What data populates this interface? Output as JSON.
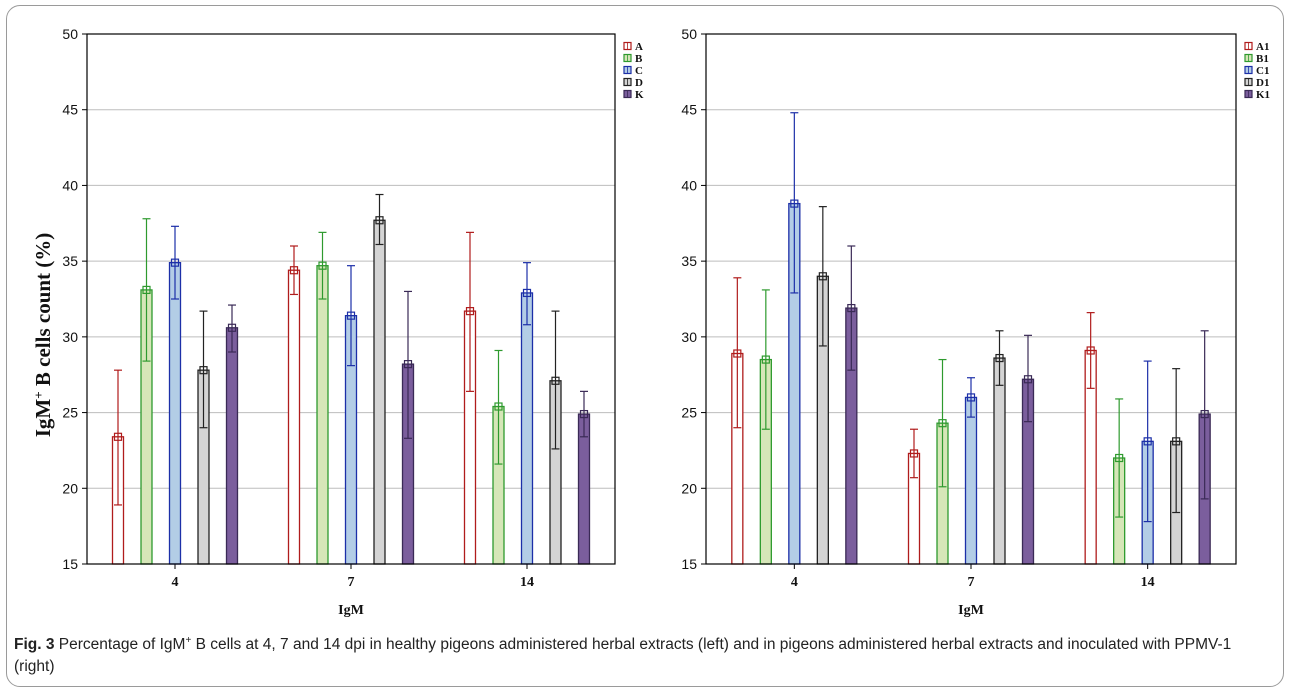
{
  "figure": {
    "ylabel_main": "IgM",
    "ylabel_sup": "+",
    "ylabel_rest": " B cells count (%)",
    "caption": {
      "label": "Fig. 3",
      "text_before": " Percentage of IgM",
      "text_sup": "+",
      "text_after": " B cells at 4, 7 and 14 dpi in healthy pigeons administered herbal extracts (left) and in pigeons administered herbal extracts and inoculated with PPMV-1 (right)"
    }
  },
  "chart_data": [
    {
      "type": "bar",
      "title": "",
      "xlabel": "IgM",
      "ylabel": "IgM+ B cells count (%)",
      "ylim": [
        15,
        50
      ],
      "yticks": [
        15,
        20,
        25,
        30,
        35,
        40,
        45,
        50
      ],
      "categories": [
        "4",
        "7",
        "14"
      ],
      "legend_position": "top-right",
      "grid": true,
      "series": [
        {
          "name": "A",
          "color": "#b01c1c",
          "fill": "#ffffff",
          "values": [
            23.4,
            34.4,
            31.7
          ],
          "err_low": [
            18.9,
            32.8,
            26.4
          ],
          "err_high": [
            27.8,
            36.0,
            36.9
          ]
        },
        {
          "name": "B",
          "color": "#2e9a2e",
          "fill": "#d6e6b8",
          "values": [
            33.1,
            34.7,
            25.4
          ],
          "err_low": [
            28.4,
            32.5,
            21.6
          ],
          "err_high": [
            37.8,
            36.9,
            29.1
          ]
        },
        {
          "name": "C",
          "color": "#1c2fa8",
          "fill": "#b3cde6",
          "values": [
            34.9,
            31.4,
            32.9
          ],
          "err_low": [
            32.5,
            28.1,
            30.8
          ],
          "err_high": [
            37.3,
            34.7,
            34.9
          ]
        },
        {
          "name": "D",
          "color": "#222222",
          "fill": "#d4d4d4",
          "values": [
            27.8,
            37.7,
            27.1
          ],
          "err_low": [
            24.0,
            36.1,
            22.6
          ],
          "err_high": [
            31.7,
            39.4,
            31.7
          ]
        },
        {
          "name": "K",
          "color": "#3a2a56",
          "fill": "#7b5e9d",
          "values": [
            30.6,
            28.2,
            24.9
          ],
          "err_low": [
            29.0,
            23.3,
            23.4
          ],
          "err_high": [
            32.1,
            33.0,
            26.4
          ]
        }
      ]
    },
    {
      "type": "bar",
      "title": "",
      "xlabel": "IgM",
      "ylabel": "",
      "ylim": [
        15,
        50
      ],
      "yticks": [
        15,
        20,
        25,
        30,
        35,
        40,
        45,
        50
      ],
      "categories": [
        "4",
        "7",
        "14"
      ],
      "legend_position": "top-right",
      "grid": true,
      "series": [
        {
          "name": "A1",
          "color": "#b01c1c",
          "fill": "#ffffff",
          "values": [
            28.9,
            22.3,
            29.1
          ],
          "err_low": [
            24.0,
            20.7,
            26.6
          ],
          "err_high": [
            33.9,
            23.9,
            31.6
          ]
        },
        {
          "name": "B1",
          "color": "#2e9a2e",
          "fill": "#d6e6b8",
          "values": [
            28.5,
            24.3,
            22.0
          ],
          "err_low": [
            23.9,
            20.1,
            18.1
          ],
          "err_high": [
            33.1,
            28.5,
            25.9
          ]
        },
        {
          "name": "C1",
          "color": "#1c2fa8",
          "fill": "#b3cde6",
          "values": [
            38.8,
            26.0,
            23.1
          ],
          "err_low": [
            32.9,
            24.7,
            17.8
          ],
          "err_high": [
            44.8,
            27.3,
            28.4
          ]
        },
        {
          "name": "D1",
          "color": "#222222",
          "fill": "#d4d4d4",
          "values": [
            34.0,
            28.6,
            23.1
          ],
          "err_low": [
            29.4,
            26.8,
            18.4
          ],
          "err_high": [
            38.6,
            30.4,
            27.9
          ]
        },
        {
          "name": "K1",
          "color": "#3a2a56",
          "fill": "#7b5e9d",
          "values": [
            31.9,
            27.2,
            24.9
          ],
          "err_low": [
            27.8,
            24.4,
            19.3
          ],
          "err_high": [
            36.0,
            30.1,
            30.4
          ]
        }
      ]
    }
  ]
}
